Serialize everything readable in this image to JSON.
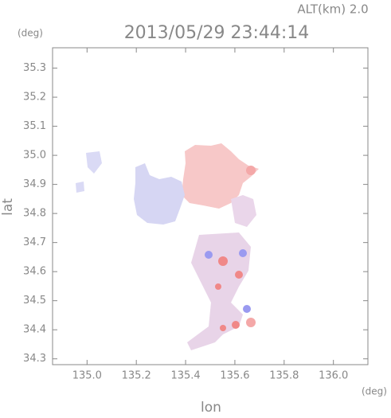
{
  "chart_data": {
    "type": "map",
    "annotation": "ALT(km) 2.0",
    "title": "2013/05/29 23:44:14",
    "y_unit": "(deg)",
    "x_unit": "(deg)",
    "xlabel": "lon",
    "ylabel": "lat",
    "xlim": [
      134.86,
      136.14
    ],
    "ylim": [
      34.28,
      35.37
    ],
    "xticks": [
      {
        "value": 135,
        "label": "135.0"
      },
      135.2,
      135.4,
      135.6,
      135.8,
      {
        "value": 136,
        "label": "136.0"
      }
    ],
    "yticks": [
      34.3,
      34.4,
      34.5,
      34.6,
      34.7,
      34.8,
      34.9,
      {
        "value": 35,
        "label": "35.0"
      },
      35.1,
      35.2,
      35.3
    ]
  }
}
